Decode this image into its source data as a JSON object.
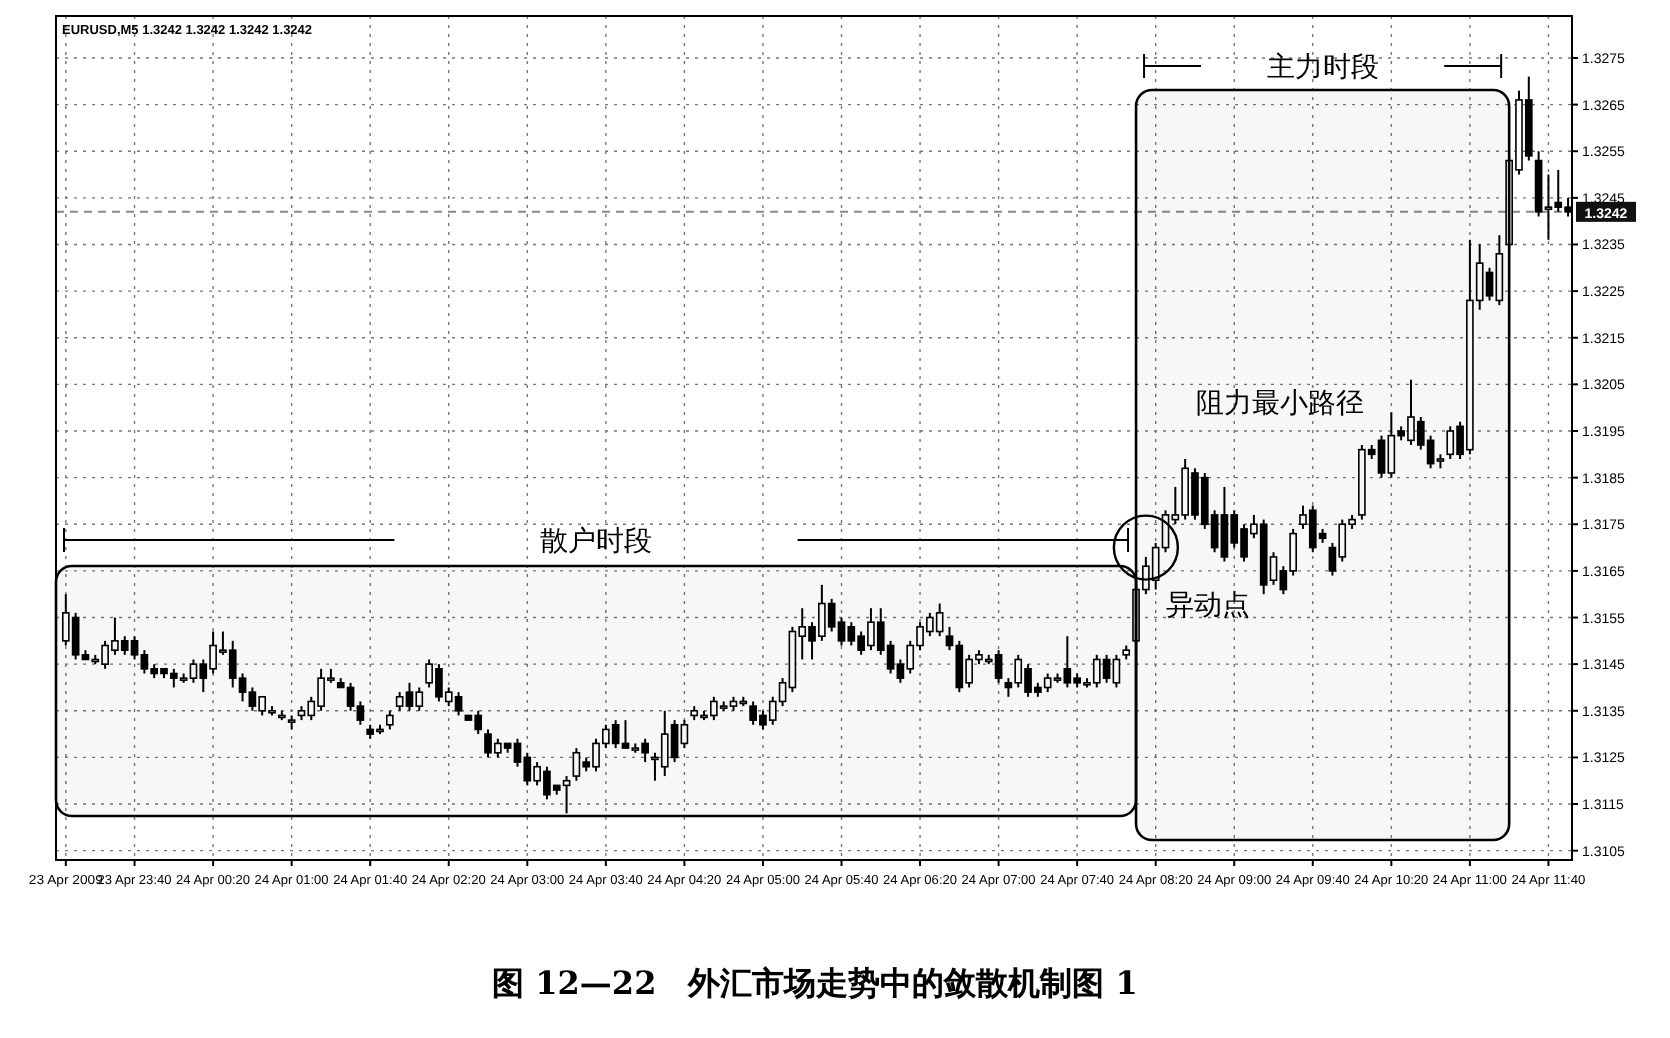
{
  "chart_data": {
    "type": "candlestick",
    "title": "图 12—22　外汇市场走势中的敛散机制图 1",
    "subtitle": "EURUSD,M5  1.3242 1.3242 1.3242 1.3242",
    "x": [
      "2009-04-23T23:05",
      "2009-04-23T23:10",
      "2009-04-23T23:15",
      "2009-04-23T23:20",
      "2009-04-23T23:25",
      "2009-04-23T23:30",
      "2009-04-23T23:35",
      "2009-04-23T23:40",
      "2009-04-23T23:45",
      "2009-04-23T23:50",
      "2009-04-23T23:55",
      "2009-04-24T00:00",
      "2009-04-24T00:05",
      "2009-04-24T00:10",
      "2009-04-24T00:15",
      "2009-04-24T00:20",
      "2009-04-24T00:25",
      "2009-04-24T00:30",
      "2009-04-24T00:35",
      "2009-04-24T00:40",
      "2009-04-24T00:45",
      "2009-04-24T00:50",
      "2009-04-24T00:55",
      "2009-04-24T01:00",
      "2009-04-24T01:05",
      "2009-04-24T01:10",
      "2009-04-24T01:15",
      "2009-04-24T01:20",
      "2009-04-24T01:25",
      "2009-04-24T01:30",
      "2009-04-24T01:35",
      "2009-04-24T01:40",
      "2009-04-24T01:45",
      "2009-04-24T01:50",
      "2009-04-24T01:55",
      "2009-04-24T02:00",
      "2009-04-24T02:05",
      "2009-04-24T02:10",
      "2009-04-24T02:15",
      "2009-04-24T02:20",
      "2009-04-24T02:25",
      "2009-04-24T02:30",
      "2009-04-24T02:35",
      "2009-04-24T02:40",
      "2009-04-24T02:45",
      "2009-04-24T02:50",
      "2009-04-24T02:55",
      "2009-04-24T03:00",
      "2009-04-24T03:05",
      "2009-04-24T03:10",
      "2009-04-24T03:15",
      "2009-04-24T03:20",
      "2009-04-24T03:25",
      "2009-04-24T03:30",
      "2009-04-24T03:35",
      "2009-04-24T03:40",
      "2009-04-24T03:45",
      "2009-04-24T03:50",
      "2009-04-24T03:55",
      "2009-04-24T04:00",
      "2009-04-24T04:05",
      "2009-04-24T04:10",
      "2009-04-24T04:15",
      "2009-04-24T04:20",
      "2009-04-24T04:25",
      "2009-04-24T04:30",
      "2009-04-24T04:35",
      "2009-04-24T04:40",
      "2009-04-24T04:45",
      "2009-04-24T04:50",
      "2009-04-24T04:55",
      "2009-04-24T05:00",
      "2009-04-24T05:05",
      "2009-04-24T05:10",
      "2009-04-24T05:15",
      "2009-04-24T05:20",
      "2009-04-24T05:25",
      "2009-04-24T05:30",
      "2009-04-24T05:35",
      "2009-04-24T05:40",
      "2009-04-24T05:45",
      "2009-04-24T05:50",
      "2009-04-24T05:55",
      "2009-04-24T06:00",
      "2009-04-24T06:05",
      "2009-04-24T06:10",
      "2009-04-24T06:15",
      "2009-04-24T06:20",
      "2009-04-24T06:25",
      "2009-04-24T06:30",
      "2009-04-24T06:35",
      "2009-04-24T06:40",
      "2009-04-24T06:45",
      "2009-04-24T06:50",
      "2009-04-24T06:55",
      "2009-04-24T07:00",
      "2009-04-24T07:05",
      "2009-04-24T07:10",
      "2009-04-24T07:15",
      "2009-04-24T07:20",
      "2009-04-24T07:25",
      "2009-04-24T07:30",
      "2009-04-24T07:35",
      "2009-04-24T07:40",
      "2009-04-24T07:45",
      "2009-04-24T07:50",
      "2009-04-24T07:55",
      "2009-04-24T08:00",
      "2009-04-24T08:05",
      "2009-04-24T08:10",
      "2009-04-24T08:15",
      "2009-04-24T08:20",
      "2009-04-24T08:25",
      "2009-04-24T08:30",
      "2009-04-24T08:35",
      "2009-04-24T08:40",
      "2009-04-24T08:45",
      "2009-04-24T08:50",
      "2009-04-24T08:55",
      "2009-04-24T09:00",
      "2009-04-24T09:05",
      "2009-04-24T09:10",
      "2009-04-24T09:15",
      "2009-04-24T09:20",
      "2009-04-24T09:25",
      "2009-04-24T09:30",
      "2009-04-24T09:35",
      "2009-04-24T09:40",
      "2009-04-24T09:45",
      "2009-04-24T09:50",
      "2009-04-24T09:55",
      "2009-04-24T10:00",
      "2009-04-24T10:05",
      "2009-04-24T10:10",
      "2009-04-24T10:15",
      "2009-04-24T10:20",
      "2009-04-24T10:25",
      "2009-04-24T10:30",
      "2009-04-24T10:35",
      "2009-04-24T10:40",
      "2009-04-24T10:45",
      "2009-04-24T10:50",
      "2009-04-24T10:55",
      "2009-04-24T11:00",
      "2009-04-24T11:05",
      "2009-04-24T11:10",
      "2009-04-24T11:15",
      "2009-04-24T11:20",
      "2009-04-24T11:25",
      "2009-04-24T11:30",
      "2009-04-24T11:35",
      "2009-04-24T11:40",
      "2009-04-24T11:45",
      "2009-04-24T11:50"
    ],
    "ohlc": [
      [
        1.315,
        1.316,
        1.3149,
        1.3156
      ],
      [
        1.3155,
        1.3156,
        1.3146,
        1.3147
      ],
      [
        1.3147,
        1.3148,
        1.3146,
        1.3146
      ],
      [
        1.3146,
        1.3147,
        1.3145,
        1.3146
      ],
      [
        1.3145,
        1.315,
        1.3144,
        1.3149
      ],
      [
        1.3148,
        1.3155,
        1.3147,
        1.315
      ],
      [
        1.315,
        1.3151,
        1.3147,
        1.3148
      ],
      [
        1.315,
        1.3151,
        1.3146,
        1.3147
      ],
      [
        1.3147,
        1.3148,
        1.3143,
        1.3144
      ],
      [
        1.3144,
        1.3145,
        1.3142,
        1.3143
      ],
      [
        1.3144,
        1.3144,
        1.3142,
        1.3143
      ],
      [
        1.3143,
        1.3144,
        1.314,
        1.3142
      ],
      [
        1.3142,
        1.3143,
        1.3141,
        1.3142
      ],
      [
        1.3142,
        1.3146,
        1.3141,
        1.3145
      ],
      [
        1.3145,
        1.3146,
        1.3139,
        1.3142
      ],
      [
        1.3144,
        1.3152,
        1.3143,
        1.3149
      ],
      [
        1.3148,
        1.3152,
        1.3147,
        1.3148
      ],
      [
        1.3148,
        1.315,
        1.314,
        1.3142
      ],
      [
        1.3142,
        1.3143,
        1.3137,
        1.3139
      ],
      [
        1.3139,
        1.314,
        1.3135,
        1.3136
      ],
      [
        1.3135,
        1.3138,
        1.3134,
        1.3138
      ],
      [
        1.3135,
        1.3136,
        1.3134,
        1.3135
      ],
      [
        1.3134,
        1.3135,
        1.3133,
        1.3134
      ],
      [
        1.3133,
        1.3134,
        1.3131,
        1.3133
      ],
      [
        1.3134,
        1.3136,
        1.3133,
        1.3135
      ],
      [
        1.3134,
        1.3138,
        1.3133,
        1.3137
      ],
      [
        1.3136,
        1.3144,
        1.3135,
        1.3142
      ],
      [
        1.3142,
        1.3144,
        1.3141,
        1.3142
      ],
      [
        1.3141,
        1.3142,
        1.314,
        1.314
      ],
      [
        1.314,
        1.3141,
        1.3135,
        1.3136
      ],
      [
        1.3136,
        1.3137,
        1.3132,
        1.3133
      ],
      [
        1.3131,
        1.3132,
        1.3129,
        1.313
      ],
      [
        1.3131,
        1.3132,
        1.313,
        1.3131
      ],
      [
        1.3132,
        1.3135,
        1.3131,
        1.3134
      ],
      [
        1.3136,
        1.3139,
        1.3135,
        1.3138
      ],
      [
        1.3139,
        1.3141,
        1.3135,
        1.3136
      ],
      [
        1.3136,
        1.314,
        1.3135,
        1.3139
      ],
      [
        1.3141,
        1.3146,
        1.314,
        1.3145
      ],
      [
        1.3144,
        1.3145,
        1.3137,
        1.3138
      ],
      [
        1.3137,
        1.314,
        1.3136,
        1.3139
      ],
      [
        1.3138,
        1.3139,
        1.3134,
        1.3135
      ],
      [
        1.3134,
        1.3134,
        1.3133,
        1.3133
      ],
      [
        1.3134,
        1.3135,
        1.313,
        1.3131
      ],
      [
        1.313,
        1.3131,
        1.3125,
        1.3126
      ],
      [
        1.3126,
        1.3129,
        1.3125,
        1.3128
      ],
      [
        1.3128,
        1.3128,
        1.3126,
        1.3127
      ],
      [
        1.3128,
        1.3129,
        1.3123,
        1.3124
      ],
      [
        1.3125,
        1.3126,
        1.3119,
        1.312
      ],
      [
        1.312,
        1.3124,
        1.3119,
        1.3123
      ],
      [
        1.3122,
        1.3123,
        1.3116,
        1.3117
      ],
      [
        1.3119,
        1.3119,
        1.3117,
        1.3118
      ],
      [
        1.3119,
        1.3121,
        1.3113,
        1.312
      ],
      [
        1.3121,
        1.3127,
        1.312,
        1.3126
      ],
      [
        1.3124,
        1.3125,
        1.3122,
        1.3123
      ],
      [
        1.3123,
        1.3129,
        1.3122,
        1.3128
      ],
      [
        1.3128,
        1.3132,
        1.3127,
        1.3131
      ],
      [
        1.3132,
        1.3133,
        1.3127,
        1.3128
      ],
      [
        1.3128,
        1.3133,
        1.3127,
        1.3127
      ],
      [
        1.3127,
        1.3128,
        1.3126,
        1.3127
      ],
      [
        1.3128,
        1.3129,
        1.3124,
        1.3126
      ],
      [
        1.3125,
        1.3126,
        1.312,
        1.3125
      ],
      [
        1.3123,
        1.3135,
        1.3121,
        1.313
      ],
      [
        1.3132,
        1.3133,
        1.3124,
        1.3125
      ],
      [
        1.3128,
        1.3133,
        1.3127,
        1.3132
      ],
      [
        1.3134,
        1.3136,
        1.3133,
        1.3135
      ],
      [
        1.3134,
        1.3135,
        1.3133,
        1.3134
      ],
      [
        1.3134,
        1.3138,
        1.3133,
        1.3137
      ],
      [
        1.3136,
        1.3137,
        1.3135,
        1.3136
      ],
      [
        1.3136,
        1.3138,
        1.3135,
        1.3137
      ],
      [
        1.3137,
        1.3138,
        1.3136,
        1.3137
      ],
      [
        1.3136,
        1.3137,
        1.3132,
        1.3133
      ],
      [
        1.3134,
        1.3135,
        1.3131,
        1.3132
      ],
      [
        1.3133,
        1.3138,
        1.3132,
        1.3137
      ],
      [
        1.3137,
        1.3142,
        1.3136,
        1.3141
      ],
      [
        1.314,
        1.3153,
        1.3139,
        1.3152
      ],
      [
        1.3151,
        1.3157,
        1.3146,
        1.3153
      ],
      [
        1.3153,
        1.3154,
        1.3146,
        1.315
      ],
      [
        1.3151,
        1.3162,
        1.315,
        1.3158
      ],
      [
        1.3158,
        1.3159,
        1.3152,
        1.3153
      ],
      [
        1.3154,
        1.3155,
        1.3149,
        1.315
      ],
      [
        1.3153,
        1.3154,
        1.3149,
        1.315
      ],
      [
        1.3151,
        1.3152,
        1.3147,
        1.3148
      ],
      [
        1.3149,
        1.3157,
        1.3148,
        1.3154
      ],
      [
        1.3154,
        1.3157,
        1.3147,
        1.3148
      ],
      [
        1.3149,
        1.315,
        1.3143,
        1.3144
      ],
      [
        1.3145,
        1.3146,
        1.3141,
        1.3142
      ],
      [
        1.3144,
        1.315,
        1.3143,
        1.3149
      ],
      [
        1.3149,
        1.3154,
        1.3148,
        1.3153
      ],
      [
        1.3152,
        1.3156,
        1.3151,
        1.3155
      ],
      [
        1.3152,
        1.3158,
        1.3151,
        1.3156
      ],
      [
        1.3151,
        1.3153,
        1.3148,
        1.3149
      ],
      [
        1.3149,
        1.315,
        1.3139,
        1.314
      ],
      [
        1.3141,
        1.3147,
        1.314,
        1.3146
      ],
      [
        1.3146,
        1.3148,
        1.3145,
        1.3147
      ],
      [
        1.3146,
        1.3147,
        1.3145,
        1.3146
      ],
      [
        1.3147,
        1.3148,
        1.3141,
        1.3142
      ],
      [
        1.3141,
        1.3142,
        1.3138,
        1.314
      ],
      [
        1.3141,
        1.3147,
        1.314,
        1.3146
      ],
      [
        1.3144,
        1.3145,
        1.3138,
        1.3139
      ],
      [
        1.314,
        1.3141,
        1.3138,
        1.3139
      ],
      [
        1.314,
        1.3143,
        1.3139,
        1.3142
      ],
      [
        1.3142,
        1.3143,
        1.3141,
        1.3142
      ],
      [
        1.3144,
        1.3151,
        1.314,
        1.3141
      ],
      [
        1.3142,
        1.3143,
        1.314,
        1.3141
      ],
      [
        1.3141,
        1.3142,
        1.314,
        1.3141
      ],
      [
        1.3141,
        1.3147,
        1.314,
        1.3146
      ],
      [
        1.3146,
        1.3147,
        1.3141,
        1.3142
      ],
      [
        1.3141,
        1.3147,
        1.314,
        1.3146
      ],
      [
        1.3147,
        1.3149,
        1.3146,
        1.3148
      ],
      [
        1.315,
        1.3162,
        1.3148,
        1.3161
      ],
      [
        1.3161,
        1.3168,
        1.316,
        1.3166
      ],
      [
        1.3163,
        1.3171,
        1.3161,
        1.317
      ],
      [
        1.317,
        1.3178,
        1.3169,
        1.3177
      ],
      [
        1.3176,
        1.3183,
        1.3175,
        1.3177
      ],
      [
        1.3177,
        1.3189,
        1.3176,
        1.3187
      ],
      [
        1.3186,
        1.3187,
        1.3176,
        1.3177
      ],
      [
        1.3185,
        1.3186,
        1.3174,
        1.3175
      ],
      [
        1.3177,
        1.3178,
        1.3169,
        1.317
      ],
      [
        1.3177,
        1.3183,
        1.3167,
        1.3168
      ],
      [
        1.3177,
        1.3178,
        1.317,
        1.3171
      ],
      [
        1.3174,
        1.3175,
        1.3167,
        1.3168
      ],
      [
        1.3173,
        1.3177,
        1.3172,
        1.3175
      ],
      [
        1.3175,
        1.3176,
        1.316,
        1.3162
      ],
      [
        1.3163,
        1.3169,
        1.3162,
        1.3168
      ],
      [
        1.3165,
        1.3166,
        1.316,
        1.3161
      ],
      [
        1.3165,
        1.3174,
        1.3164,
        1.3173
      ],
      [
        1.3175,
        1.3179,
        1.3174,
        1.3177
      ],
      [
        1.3178,
        1.3179,
        1.3169,
        1.317
      ],
      [
        1.3173,
        1.3174,
        1.3171,
        1.3172
      ],
      [
        1.317,
        1.3171,
        1.3164,
        1.3165
      ],
      [
        1.3168,
        1.3176,
        1.3167,
        1.3175
      ],
      [
        1.3175,
        1.3177,
        1.3174,
        1.3176
      ],
      [
        1.3177,
        1.3192,
        1.3176,
        1.3191
      ],
      [
        1.3191,
        1.3192,
        1.3189,
        1.319
      ],
      [
        1.3193,
        1.3194,
        1.3185,
        1.3186
      ],
      [
        1.3186,
        1.3199,
        1.3185,
        1.3194
      ],
      [
        1.3195,
        1.3196,
        1.3193,
        1.3194
      ],
      [
        1.3193,
        1.3206,
        1.3192,
        1.3198
      ],
      [
        1.3197,
        1.3198,
        1.3191,
        1.3192
      ],
      [
        1.3193,
        1.3194,
        1.3187,
        1.3188
      ],
      [
        1.3189,
        1.319,
        1.3187,
        1.3189
      ],
      [
        1.319,
        1.3196,
        1.3189,
        1.3195
      ],
      [
        1.3196,
        1.3197,
        1.3189,
        1.319
      ],
      [
        1.3191,
        1.3236,
        1.319,
        1.3223
      ],
      [
        1.3223,
        1.3235,
        1.3221,
        1.3231
      ],
      [
        1.3229,
        1.323,
        1.3223,
        1.3224
      ],
      [
        1.3223,
        1.3237,
        1.3222,
        1.3233
      ],
      [
        1.3235,
        1.3254,
        1.3234,
        1.3253
      ],
      [
        1.3251,
        1.3268,
        1.325,
        1.3266
      ],
      [
        1.3266,
        1.3271,
        1.3253,
        1.3254
      ],
      [
        1.3253,
        1.3255,
        1.3241,
        1.3242
      ],
      [
        1.3243,
        1.325,
        1.3236,
        1.3243
      ],
      [
        1.3244,
        1.3251,
        1.3242,
        1.3243
      ],
      [
        1.3243,
        1.3245,
        1.3241,
        1.3242
      ]
    ],
    "xlim": [
      "2009-04-23T23:00",
      "2009-04-24T11:52"
    ],
    "xticks": [
      {
        "value": "2009-04-23T23:05",
        "label": "23 Apr 2009"
      },
      {
        "value": "2009-04-23T23:40",
        "label": "23 Apr 23:40"
      },
      {
        "value": "2009-04-24T00:20",
        "label": "24 Apr 00:20"
      },
      {
        "value": "2009-04-24T01:00",
        "label": "24 Apr 01:00"
      },
      {
        "value": "2009-04-24T01:40",
        "label": "24 Apr 01:40"
      },
      {
        "value": "2009-04-24T02:20",
        "label": "24 Apr 02:20"
      },
      {
        "value": "2009-04-24T03:00",
        "label": "24 Apr 03:00"
      },
      {
        "value": "2009-04-24T03:40",
        "label": "24 Apr 03:40"
      },
      {
        "value": "2009-04-24T04:20",
        "label": "24 Apr 04:20"
      },
      {
        "value": "2009-04-24T05:00",
        "label": "24 Apr 05:00"
      },
      {
        "value": "2009-04-24T05:40",
        "label": "24 Apr 05:40"
      },
      {
        "value": "2009-04-24T06:20",
        "label": "24 Apr 06:20"
      },
      {
        "value": "2009-04-24T07:00",
        "label": "24 Apr 07:00"
      },
      {
        "value": "2009-04-24T07:40",
        "label": "24 Apr 07:40"
      },
      {
        "value": "2009-04-24T08:20",
        "label": "24 Apr 08:20"
      },
      {
        "value": "2009-04-24T09:00",
        "label": "24 Apr 09:00"
      },
      {
        "value": "2009-04-24T09:40",
        "label": "24 Apr 09:40"
      },
      {
        "value": "2009-04-24T10:20",
        "label": "24 Apr 10:20"
      },
      {
        "value": "2009-04-24T11:00",
        "label": "24 Apr 11:00"
      },
      {
        "value": "2009-04-24T11:40",
        "label": "24 Apr 11:40"
      }
    ],
    "ylim": [
      1.3103,
      1.3284
    ],
    "yticks": [
      1.3105,
      1.3115,
      1.3125,
      1.3135,
      1.3145,
      1.3155,
      1.3165,
      1.3175,
      1.3185,
      1.3195,
      1.3205,
      1.3215,
      1.3225,
      1.3235,
      1.3245,
      1.3255,
      1.3265,
      1.3275
    ],
    "grid": true,
    "ref_lines": [
      {
        "axis": "y",
        "value": 1.3242,
        "label": "1.3242",
        "line_style": "dashed",
        "color": "#888888"
      }
    ],
    "bands": [
      {
        "axis": "x",
        "from": "2009-04-23T23:00",
        "to": "2009-04-24T08:10",
        "label": "散户时段"
      },
      {
        "axis": "x",
        "from": "2009-04-24T08:10",
        "to": "2009-04-24T11:20",
        "label": "主力时段"
      }
    ],
    "annotations": [
      {
        "text": "异动点",
        "x": "2009-04-24T08:15",
        "y": 1.317
      },
      "阻力最小路径"
    ]
  }
}
